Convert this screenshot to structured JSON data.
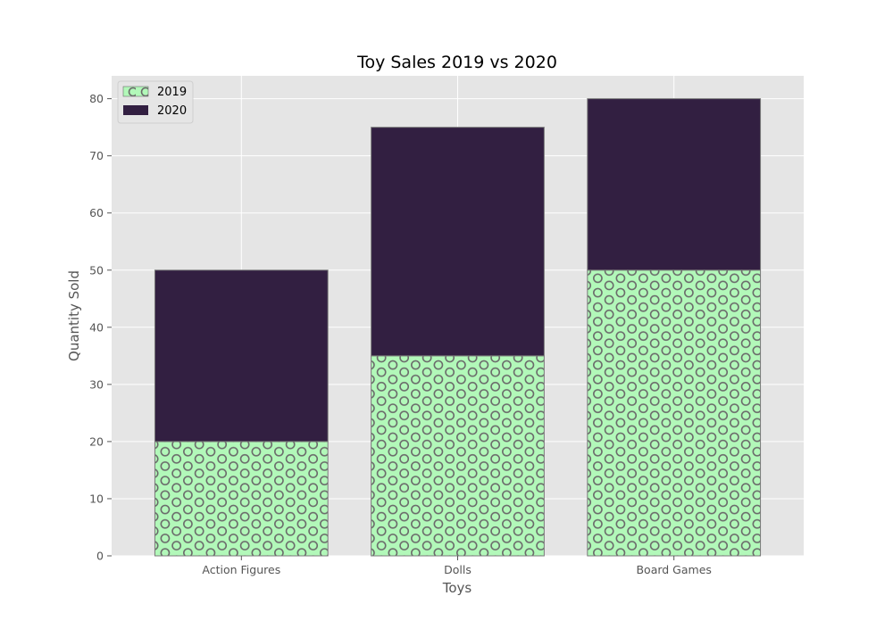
{
  "chart_data": {
    "type": "bar",
    "stacked": true,
    "title": "Toy Sales 2019 vs 2020",
    "xlabel": "Toys",
    "ylabel": "Quantity Sold",
    "categories": [
      "Action Figures",
      "Dolls",
      "Board Games"
    ],
    "series": [
      {
        "name": "2019",
        "values": [
          20,
          35,
          50
        ],
        "color": "#b2f8b9",
        "hatch": "o",
        "hatch_color": "#6b6b6b"
      },
      {
        "name": "2020",
        "values": [
          30,
          40,
          30
        ],
        "color": "#321f41"
      }
    ],
    "ylim": [
      0,
      84
    ],
    "yticks": [
      0,
      10,
      20,
      30,
      40,
      50,
      60,
      70,
      80
    ],
    "grid": true,
    "legend": "top-left",
    "style": {
      "plot_background": "#e5e5e5",
      "grid_color": "#ffffff"
    }
  }
}
